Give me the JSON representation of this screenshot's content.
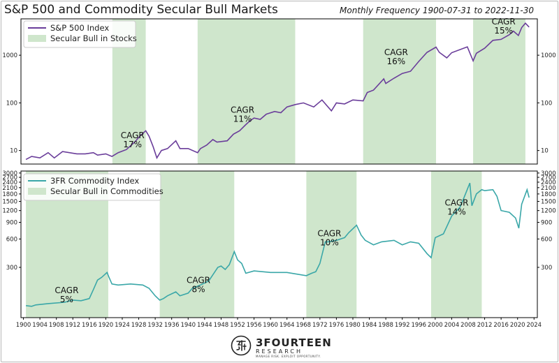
{
  "header": {
    "title": "S&P 500 and Commodity Secular Bull Markets",
    "subtitle": "Monthly Frequency 1900-07-31 to 2022-11-30"
  },
  "colors": {
    "sp500": "#6a3d9a",
    "commodity": "#3aa7a8",
    "shade": "#cfe6cc"
  },
  "footer": {
    "brand_name": "3FOURTEEN",
    "brand_sub": "RESEARCH",
    "tagline": "MANAGE RISK. EXPLOIT OPPORTUNITY."
  },
  "chart_data": [
    {
      "type": "line",
      "title": "S&P 500 Index",
      "scale": "log",
      "xlim": [
        1899.4,
        2024.8
      ],
      "ylim": [
        5.2,
        5800
      ],
      "yticks": [
        10,
        100,
        1000
      ],
      "ytick_labels": [
        "10",
        "100",
        "1000"
      ],
      "legend": [
        "S&P 500 Index",
        "Secular Bull in Stocks"
      ],
      "legend_position": "top-left",
      "shaded_periods": [
        [
          1921.6,
          1929.7
        ],
        [
          1942.3,
          1966.0
        ],
        [
          1982.5,
          2000.2
        ],
        [
          2009.2,
          2021.9
        ]
      ],
      "annotations": [
        {
          "text": "CAGR",
          "value": "17%",
          "x": 1926.5,
          "y": 18
        },
        {
          "text": "CAGR",
          "value": "11%",
          "x": 1953.2,
          "y": 62
        },
        {
          "text": "CAGR",
          "value": "16%",
          "x": 1990.5,
          "y": 1000
        },
        {
          "text": "CAGR",
          "value": "15%",
          "x": 2016.6,
          "y": 4400
        }
      ],
      "series": [
        {
          "name": "S&P 500 Index",
          "x": [
            1900.6,
            1902,
            1904,
            1906,
            1907.5,
            1909.5,
            1913,
            1915,
            1917,
            1918,
            1920,
            1921.5,
            1923,
            1925,
            1927,
            1928.5,
            1929.7,
            1930.5,
            1931.5,
            1932.4,
            1933.5,
            1935,
            1937,
            1938,
            1940,
            1942.3,
            1943,
            1944.5,
            1946,
            1947,
            1949.5,
            1951,
            1952.5,
            1954,
            1955,
            1956,
            1957.5,
            1959,
            1961,
            1962.5,
            1964,
            1966,
            1968,
            1970.5,
            1972.5,
            1974.8,
            1976,
            1978,
            1980,
            1982.5,
            1983.5,
            1985,
            1987.5,
            1988,
            1990,
            1992,
            1994,
            1996,
            1998,
            2000.2,
            2001,
            2002.8,
            2004,
            2007.8,
            2009.2,
            2010,
            2012,
            2014,
            2016,
            2018,
            2019,
            2020.2,
            2021,
            2021.9,
            2022.8
          ],
          "values": [
            6.5,
            7.5,
            7,
            9,
            7,
            9.5,
            8.5,
            8.5,
            9,
            8,
            8.5,
            7.5,
            9,
            10.5,
            15,
            21,
            26,
            20,
            12,
            7,
            10,
            11,
            16,
            11,
            11,
            9,
            11,
            13,
            17,
            15,
            16,
            22,
            26,
            35,
            42,
            48,
            45,
            58,
            66,
            62,
            82,
            92,
            100,
            82,
            115,
            68,
            100,
            95,
            115,
            110,
            165,
            185,
            320,
            255,
            330,
            415,
            460,
            740,
            1150,
            1480,
            1150,
            880,
            1130,
            1500,
            760,
            1100,
            1400,
            2050,
            2150,
            2700,
            3200,
            2600,
            3800,
            4700,
            3900
          ]
        }
      ]
    },
    {
      "type": "line",
      "title": "3FR Commodity Index",
      "scale": "log",
      "xlim": [
        1899.4,
        2024.8
      ],
      "ylim": [
        88,
        3150
      ],
      "yticks": [
        300,
        600,
        900,
        1200,
        1500,
        1800,
        2100,
        2400,
        2700,
        3000
      ],
      "ytick_labels": [
        "300",
        "600",
        "900",
        "1200",
        "1500",
        "1800",
        "2100",
        "2400",
        "2700",
        "3000"
      ],
      "xticks": [
        1900,
        1904,
        1908,
        1912,
        1916,
        1920,
        1924,
        1928,
        1932,
        1936,
        1940,
        1944,
        1948,
        1952,
        1956,
        1960,
        1964,
        1968,
        1972,
        1976,
        1980,
        1984,
        1988,
        1992,
        1996,
        2000,
        2004,
        2008,
        2012,
        2016,
        2020,
        2024
      ],
      "xtick_labels": [
        "1900",
        "1904",
        "1908",
        "1912",
        "1916",
        "1920",
        "1924",
        "1928",
        "1932",
        "1936",
        "1940",
        "1944",
        "1948",
        "1952",
        "1956",
        "1960",
        "1964",
        "1968",
        "1972",
        "1976",
        "1980",
        "1984",
        "1988",
        "1992",
        "1996",
        "2000",
        "2004",
        "2008",
        "2012",
        "2016",
        "2020",
        "2024"
      ],
      "legend": [
        "3FR Commodity Index",
        "Secular Bull in Commodities"
      ],
      "legend_position": "top-left",
      "shaded_periods": [
        [
          1900.6,
          1920.6
        ],
        [
          1933.1,
          1951.2
        ],
        [
          1968.7,
          1980.9
        ],
        [
          1999.0,
          2011.3
        ]
      ],
      "annotations": [
        {
          "text": "CAGR",
          "value": "5%",
          "x": 1910.5,
          "y": 160
        },
        {
          "text": "CAGR",
          "value": "8%",
          "x": 1942.5,
          "y": 205
        },
        {
          "text": "CAGR",
          "value": "10%",
          "x": 1974.3,
          "y": 640
        },
        {
          "text": "CAGR",
          "value": "14%",
          "x": 2005.2,
          "y": 1350
        }
      ],
      "series": [
        {
          "name": "3FR Commodity Index",
          "x": [
            1900.6,
            1902,
            1903,
            1906,
            1910,
            1912,
            1914,
            1916,
            1917,
            1918,
            1919,
            1920.3,
            1920.7,
            1921.5,
            1923,
            1926,
            1929,
            1930.5,
            1932,
            1933.1,
            1934,
            1935,
            1937,
            1938,
            1940,
            1941,
            1943,
            1945,
            1946,
            1947.2,
            1948,
            1949,
            1950,
            1951.2,
            1952,
            1953,
            1954,
            1956,
            1960,
            1964,
            1968.7,
            1970,
            1971,
            1972,
            1973.3,
            1974,
            1976,
            1978,
            1979,
            1980.9,
            1982,
            1983,
            1985,
            1987,
            1990,
            1992,
            1994,
            1996,
            1998,
            1999,
            2000,
            2002,
            2004,
            2006,
            2007,
            2008.4,
            2008.9,
            2010,
            2011.3,
            2012,
            2014,
            2015,
            2016,
            2018,
            2019.5,
            2020.3,
            2021,
            2022.3,
            2022.8
          ],
          "values": [
            118,
            116,
            120,
            124,
            128,
            135,
            133,
            140,
            175,
            220,
            235,
            265,
            240,
            200,
            195,
            200,
            195,
            180,
            150,
            135,
            140,
            150,
            165,
            150,
            160,
            180,
            195,
            215,
            250,
            300,
            310,
            285,
            320,
            440,
            360,
            330,
            260,
            275,
            265,
            265,
            245,
            260,
            270,
            330,
            560,
            560,
            580,
            620,
            700,
            840,
            660,
            580,
            520,
            560,
            580,
            520,
            560,
            540,
            420,
            380,
            620,
            680,
            1050,
            1300,
            1650,
            2350,
            1350,
            1800,
            2000,
            1950,
            2000,
            1700,
            1200,
            1150,
            1000,
            780,
            1400,
            2000,
            1650
          ]
        }
      ]
    }
  ]
}
